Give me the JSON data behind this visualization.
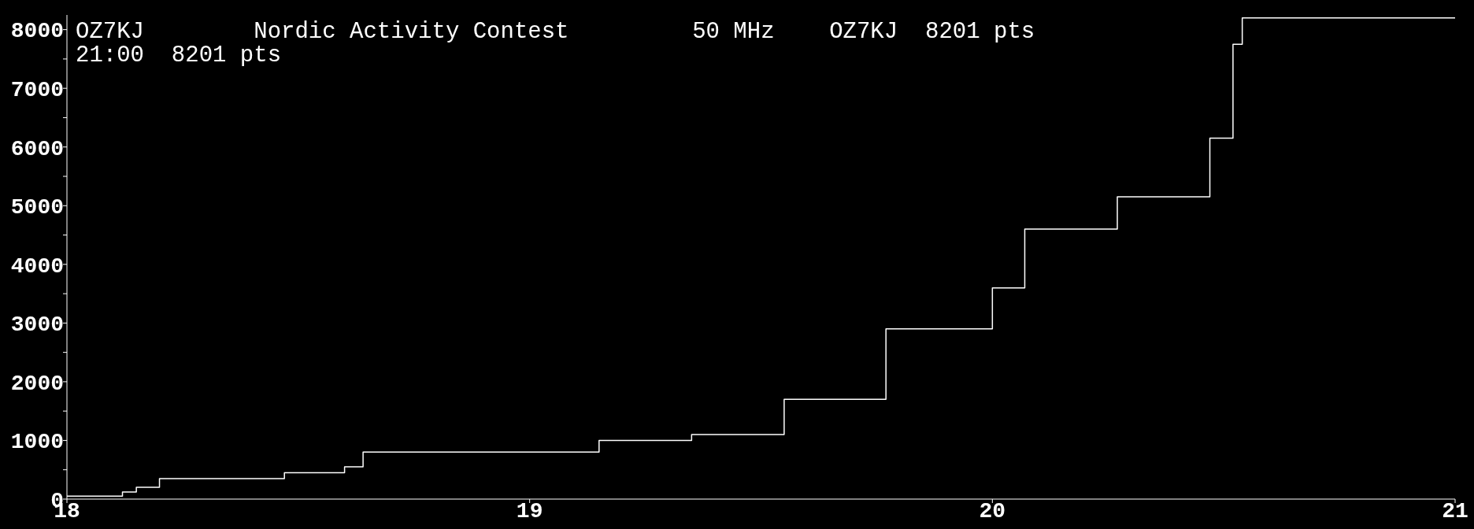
{
  "chart_data": {
    "type": "step",
    "title": "OZ7KJ        Nordic Activity Contest         50 MHz    OZ7KJ  8201 pts",
    "subtitle": "21:00  8201 pts",
    "x": [
      18,
      18.12,
      18.15,
      18.2,
      18.47,
      18.6,
      18.64,
      19.15,
      19.35,
      19.55,
      19.77,
      20.0,
      20.07,
      20.27,
      20.47,
      20.52,
      20.54,
      21
    ],
    "series": [
      {
        "color": "#ffffff",
        "values": [
          50,
          120,
          200,
          350,
          450,
          550,
          800,
          1000,
          1100,
          1700,
          2900,
          3600,
          4600,
          5150,
          6150,
          7750,
          8201,
          8201
        ]
      }
    ],
    "xlim": [
      18,
      21
    ],
    "xticks": [
      18,
      19,
      20,
      21
    ],
    "ylim": [
      0,
      8250
    ],
    "yticks": [
      0,
      {
        "value": 500,
        "label": null
      },
      1000,
      {
        "value": 1500,
        "label": null
      },
      2000,
      {
        "value": 2500,
        "label": null
      },
      3000,
      {
        "value": 3500,
        "label": null
      },
      4000,
      {
        "value": 4500,
        "label": null
      },
      5000,
      {
        "value": 5500,
        "label": null
      },
      6000,
      {
        "value": 6500,
        "label": null
      },
      7000,
      {
        "value": 7500,
        "label": null
      },
      8000
    ],
    "grid": false,
    "marker": "none",
    "line_style": "solid"
  }
}
